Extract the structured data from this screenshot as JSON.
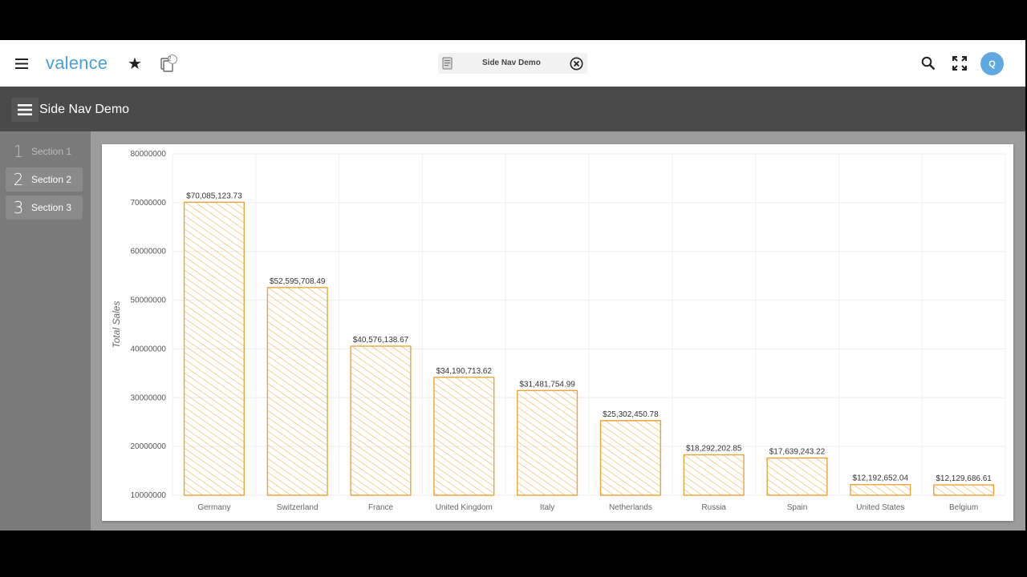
{
  "header": {
    "brand": "valence",
    "tab_label": "Side Nav Demo",
    "avatar_initial": "Q",
    "notification_count": "2"
  },
  "appbar": {
    "title": "Side Nav Demo"
  },
  "sidenav": {
    "items": [
      {
        "num": "1",
        "label": "Section 1",
        "disabled": true
      },
      {
        "num": "2",
        "label": "Section 2",
        "disabled": false
      },
      {
        "num": "3",
        "label": "Section 3",
        "disabled": false
      }
    ]
  },
  "colors": {
    "bar_stroke": "#e8a53a",
    "brand": "#4a9fd8",
    "avatar": "#5ea9e0",
    "appbar": "#4a4a4a"
  },
  "chart_data": {
    "type": "bar",
    "ylabel": "Total Sales",
    "ylim": [
      10000000,
      80000000
    ],
    "yticks": [
      "10000000",
      "20000000",
      "30000000",
      "40000000",
      "50000000",
      "60000000",
      "70000000",
      "80000000"
    ],
    "categories": [
      "Germany",
      "Switzerland",
      "France",
      "United Kingdom",
      "Italy",
      "Netherlands",
      "Russia",
      "Spain",
      "United States",
      "Belgium"
    ],
    "values": [
      70085123.73,
      52595708.49,
      40576138.67,
      34190713.62,
      31481754.99,
      25302450.78,
      18292202.85,
      17639243.22,
      12192652.04,
      12129686.61
    ],
    "labels": [
      "$70,085,123.73",
      "$52,595,708.49",
      "$40,576,138.67",
      "$34,190,713.62",
      "$31,481,754.99",
      "$25,302,450.78",
      "$18,292,202.85",
      "$17,639,243.22",
      "$12,192,652.04",
      "$12,129,686.61"
    ],
    "grid": true,
    "style": "sketch-hatched"
  }
}
